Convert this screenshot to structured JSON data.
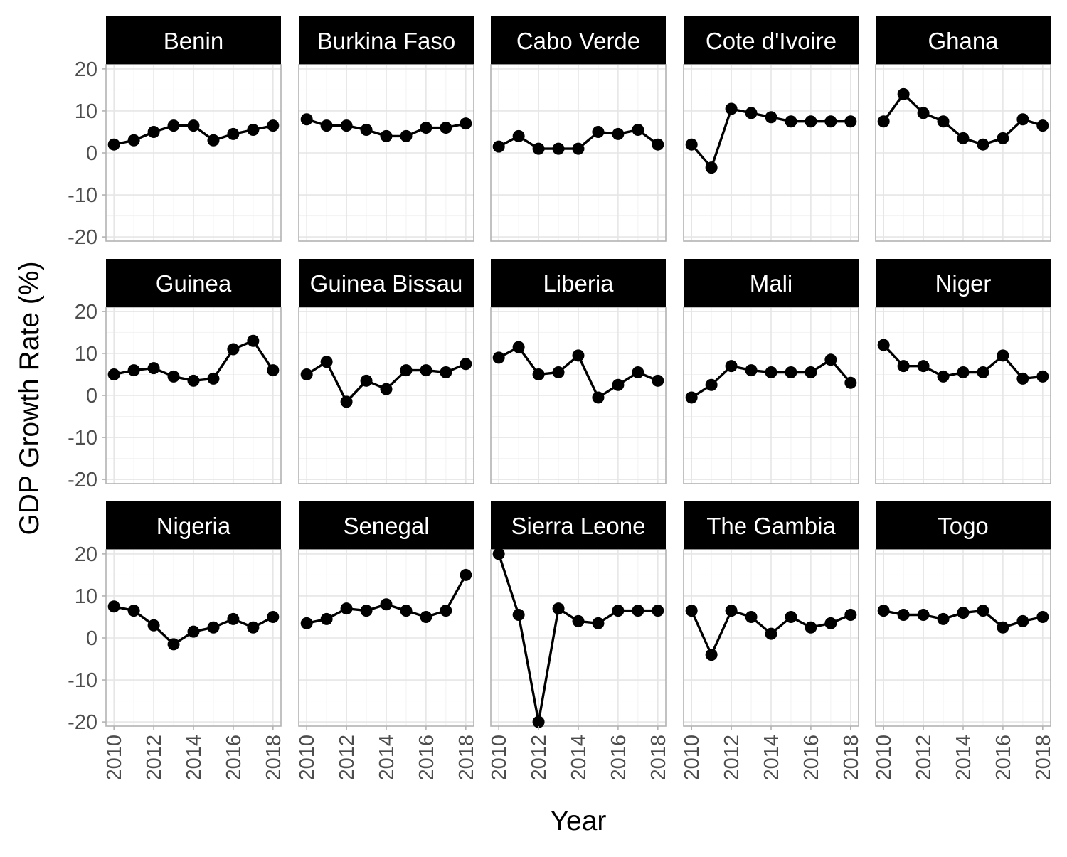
{
  "chart_data": {
    "type": "line",
    "facets": true,
    "xlabel": "Year",
    "ylabel": "GDP Growth Rate (%)",
    "x": [
      2010,
      2011,
      2012,
      2013,
      2014,
      2015,
      2016,
      2017,
      2018
    ],
    "x_ticks": [
      "2010",
      "2012",
      "2014",
      "2016",
      "2018"
    ],
    "y_ticks": [
      "20",
      "10",
      "0",
      "-10",
      "-20"
    ],
    "ylim": [
      -21,
      21
    ],
    "grid": true,
    "series": [
      {
        "name": "Benin",
        "values": [
          2.0,
          3.0,
          5.0,
          6.5,
          6.5,
          3.0,
          4.5,
          5.5,
          6.5
        ]
      },
      {
        "name": "Burkina Faso",
        "values": [
          8.0,
          6.5,
          6.5,
          5.5,
          4.0,
          4.0,
          6.0,
          6.0,
          7.0
        ]
      },
      {
        "name": "Cabo Verde",
        "values": [
          1.5,
          4.0,
          1.0,
          1.0,
          1.0,
          5.0,
          4.5,
          5.5,
          2.0
        ]
      },
      {
        "name": "Cote d'Ivoire",
        "values": [
          2.0,
          -3.5,
          10.5,
          9.5,
          8.5,
          7.5,
          7.5,
          7.5,
          7.5
        ]
      },
      {
        "name": "Ghana",
        "values": [
          7.5,
          14.0,
          9.5,
          7.5,
          3.5,
          2.0,
          3.5,
          8.0,
          6.5
        ]
      },
      {
        "name": "Guinea",
        "values": [
          5.0,
          6.0,
          6.5,
          4.5,
          3.5,
          4.0,
          11.0,
          13.0,
          6.0
        ]
      },
      {
        "name": "Guinea Bissau",
        "values": [
          5.0,
          8.0,
          -1.5,
          3.5,
          1.5,
          6.0,
          6.0,
          5.5,
          7.5
        ]
      },
      {
        "name": "Liberia",
        "values": [
          9.0,
          11.5,
          5.0,
          5.5,
          9.5,
          -0.5,
          2.5,
          5.5,
          3.5
        ]
      },
      {
        "name": "Mali",
        "values": [
          -0.5,
          2.5,
          7.0,
          6.0,
          5.5,
          5.5,
          5.5,
          8.5,
          3.0
        ]
      },
      {
        "name": "Niger",
        "values": [
          12.0,
          7.0,
          7.0,
          4.5,
          5.5,
          5.5,
          9.5,
          4.0,
          4.5
        ]
      },
      {
        "name": "Nigeria",
        "values": [
          7.5,
          6.5,
          3.0,
          -1.5,
          1.5,
          2.5,
          4.5,
          2.5,
          5.0
        ]
      },
      {
        "name": "Senegal",
        "values": [
          3.5,
          4.5,
          7.0,
          6.5,
          8.0,
          6.5,
          5.0,
          6.5,
          15.0
        ]
      },
      {
        "name": "Sierra Leone",
        "values": [
          20.0,
          5.5,
          -20.0,
          7.0,
          4.0,
          3.5,
          6.5,
          6.5,
          6.5
        ]
      },
      {
        "name": "The Gambia",
        "values": [
          6.5,
          -4.0,
          6.5,
          5.0,
          1.0,
          5.0,
          2.5,
          3.5,
          5.5
        ]
      },
      {
        "name": "Togo",
        "values": [
          6.5,
          5.5,
          5.5,
          4.5,
          6.0,
          6.5,
          2.5,
          4.0,
          5.0
        ]
      }
    ]
  }
}
